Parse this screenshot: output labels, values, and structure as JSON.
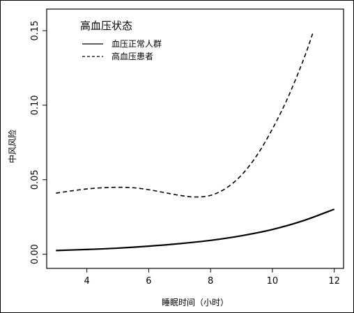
{
  "chart_data": {
    "type": "line",
    "xlabel": "睡眠时间（小时）",
    "ylabel": "中风风险",
    "xlim": [
      2.7,
      12.3
    ],
    "ylim": [
      -0.0095,
      0.1645
    ],
    "x_ticks": [
      "4",
      "6",
      "8",
      "10",
      "12"
    ],
    "y_ticks": [
      "0.00",
      "0.05",
      "0.10",
      "0.15"
    ],
    "grid": false,
    "legend": {
      "title": "高血压状态",
      "position": "top-left",
      "entries": [
        "血压正常人群",
        "高血压患者"
      ]
    },
    "series": [
      {
        "name": "血压正常人群",
        "style": "solid",
        "x": [
          3,
          4,
          5,
          6,
          7,
          8,
          9,
          10,
          11,
          12
        ],
        "y": [
          0.0025,
          0.0032,
          0.0041,
          0.0054,
          0.0071,
          0.0093,
          0.0124,
          0.0166,
          0.0225,
          0.0302
        ]
      },
      {
        "name": "高血压患者",
        "style": "dashed",
        "x": [
          3,
          3.5,
          4,
          4.5,
          5,
          5.5,
          6,
          6.5,
          7,
          7.5,
          8,
          8.5,
          9,
          9.5,
          10,
          10.5,
          11,
          11.3
        ],
        "y": [
          0.041,
          0.0425,
          0.0438,
          0.0446,
          0.0449,
          0.0446,
          0.0433,
          0.0414,
          0.0395,
          0.0384,
          0.0395,
          0.0443,
          0.0531,
          0.0664,
          0.0841,
          0.1051,
          0.1303,
          0.148
        ]
      }
    ]
  }
}
